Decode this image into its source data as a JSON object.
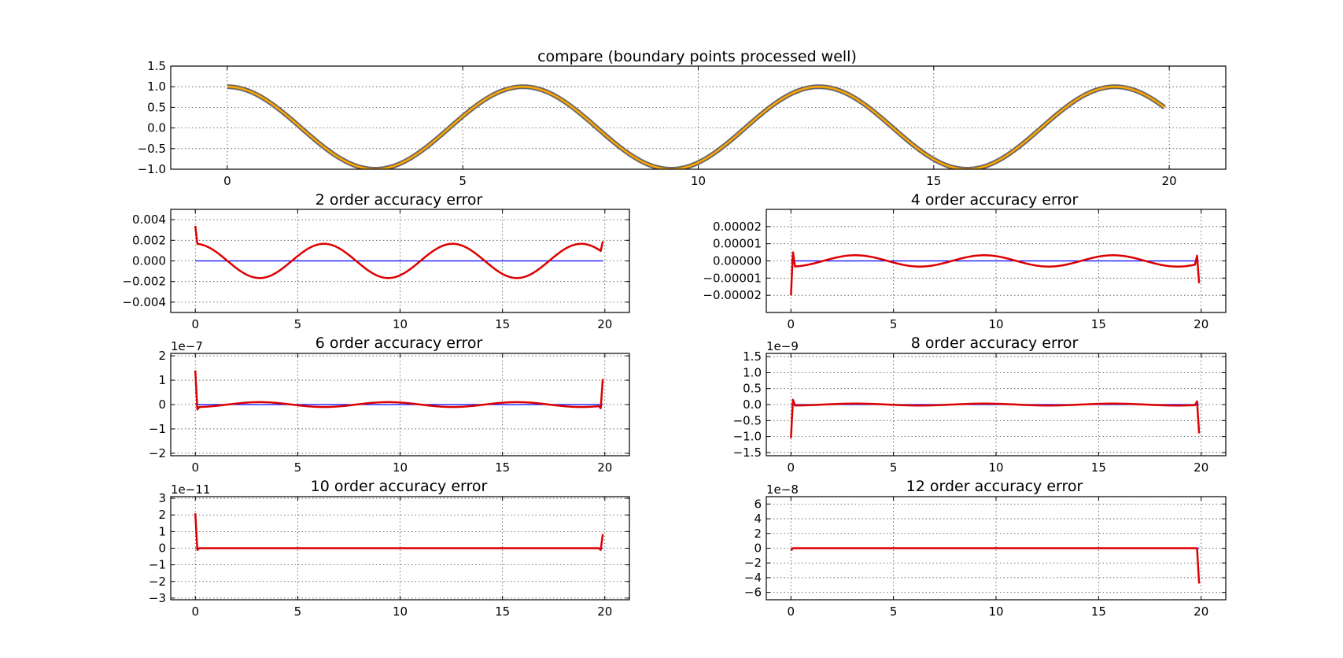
{
  "figure": {
    "background": "#ffffff"
  },
  "chart_data": [
    {
      "id": "compare",
      "type": "line",
      "title": "compare (boundary points processed well)",
      "xlim": [
        -1.2,
        21.2
      ],
      "ylim": [
        -1.0,
        1.5
      ],
      "xticks": [
        0,
        5,
        10,
        15,
        20
      ],
      "yticks": [
        -1.0,
        -0.5,
        0.0,
        0.5,
        1.0,
        1.5
      ],
      "yticklabels": [
        "−1.0",
        "−0.5",
        "0.0",
        "0.5",
        "1.0",
        "1.5"
      ],
      "grid": true,
      "scale_label": "",
      "series": [
        {
          "function": "cos(x)",
          "x_range": [
            0,
            19.9
          ],
          "color": "#666666",
          "line_width": "thick"
        },
        {
          "function": "cos(x)",
          "x_range": [
            0,
            19.9
          ],
          "color": "#ffa500",
          "line_width": "thin"
        }
      ]
    },
    {
      "id": "err2",
      "type": "line",
      "title": "2 order accuracy error",
      "xlim": [
        -1.2,
        21.2
      ],
      "ylim": [
        -0.005,
        0.005
      ],
      "xticks": [
        0,
        5,
        10,
        15,
        20
      ],
      "yticks": [
        -0.004,
        -0.002,
        0.0,
        0.002,
        0.004
      ],
      "yticklabels": [
        "−0.004",
        "−0.002",
        "0.000",
        "0.002",
        "0.004"
      ],
      "grid": true,
      "scale_label": "",
      "series": [
        {
          "function": "zero",
          "x_range": [
            0,
            19.9
          ],
          "color": "#0000ff"
        },
        {
          "function": "amp*cos(x)",
          "amplitude": 0.00166,
          "x_range": [
            0.1,
            19.8
          ],
          "endpoints": [
            [
              0,
              0.0034
            ],
            [
              19.9,
              0.0019
            ]
          ],
          "color": "#dd0000"
        }
      ]
    },
    {
      "id": "err4",
      "type": "line",
      "title": "4 order accuracy error",
      "xlim": [
        -1.2,
        21.2
      ],
      "ylim": [
        -3e-05,
        3e-05
      ],
      "xticks": [
        0,
        5,
        10,
        15,
        20
      ],
      "yticks": [
        -2e-05,
        -1e-05,
        0.0,
        1e-05,
        2e-05
      ],
      "yticklabels": [
        "−0.00002",
        "−0.00001",
        "0.00000",
        "0.00001",
        "0.00002"
      ],
      "grid": true,
      "scale_label": "",
      "series": [
        {
          "function": "zero",
          "x_range": [
            0,
            19.9
          ],
          "color": "#0000ff"
        },
        {
          "function": "amp*cos(x)",
          "amplitude": -3.3e-06,
          "x_range": [
            0.2,
            19.7
          ],
          "endpoints": [
            [
              0,
              -2e-05
            ],
            [
              0.1,
              5e-06
            ],
            [
              19.8,
              3e-06
            ],
            [
              19.9,
              -1.3e-05
            ]
          ],
          "color": "#dd0000"
        }
      ]
    },
    {
      "id": "err6",
      "type": "line",
      "title": "6 order accuracy error",
      "xlim": [
        -1.2,
        21.2
      ],
      "ylim": [
        -2.1,
        2.1
      ],
      "xticks": [
        0,
        5,
        10,
        15,
        20
      ],
      "yticks": [
        -2,
        -1,
        0,
        1,
        2
      ],
      "yticklabels": [
        "−2",
        "−1",
        "0",
        "1",
        "2"
      ],
      "grid": true,
      "scale_label": "1e−7",
      "series": [
        {
          "function": "zero",
          "x_range": [
            0,
            19.9
          ],
          "color": "#0000ff",
          "endpoints": [
            [
              0.1,
              -0.1
            ],
            [
              0.25,
              0.1
            ],
            [
              19.7,
              0.1
            ],
            [
              19.8,
              -0.1
            ]
          ]
        },
        {
          "function": "amp*cos(x)",
          "amplitude": -0.1,
          "x_range": [
            0.2,
            19.7
          ],
          "endpoints": [
            [
              0,
              1.4
            ],
            [
              0.1,
              -0.2
            ],
            [
              19.8,
              -0.15
            ],
            [
              19.9,
              1.05
            ]
          ],
          "color": "#dd0000"
        }
      ]
    },
    {
      "id": "err8",
      "type": "line",
      "title": "8 order accuracy error",
      "xlim": [
        -1.2,
        21.2
      ],
      "ylim": [
        -1.6,
        1.6
      ],
      "xticks": [
        0,
        5,
        10,
        15,
        20
      ],
      "yticks": [
        -1.5,
        -1.0,
        -0.5,
        0.0,
        0.5,
        1.0,
        1.5
      ],
      "yticklabels": [
        "−1.5",
        "−1.0",
        "−0.5",
        "0.0",
        "0.5",
        "1.0",
        "1.5"
      ],
      "grid": true,
      "scale_label": "1e−9",
      "series": [
        {
          "function": "zero",
          "x_range": [
            0,
            19.9
          ],
          "color": "#0000ff",
          "endpoints": [
            [
              0.1,
              0.1
            ],
            [
              0.25,
              -0.05
            ],
            [
              19.7,
              -0.05
            ],
            [
              19.8,
              0.1
            ]
          ]
        },
        {
          "function": "amp*cos(x)",
          "amplitude": -0.03,
          "x_range": [
            0.2,
            19.7
          ],
          "endpoints": [
            [
              0,
              -1.05
            ],
            [
              0.1,
              0.15
            ],
            [
              19.8,
              0.1
            ],
            [
              19.9,
              -0.9
            ]
          ],
          "color": "#dd0000"
        }
      ]
    },
    {
      "id": "err10",
      "type": "line",
      "title": "10 order accuracy error",
      "xlim": [
        -1.2,
        21.2
      ],
      "ylim": [
        -3.1,
        3.1
      ],
      "xticks": [
        0,
        5,
        10,
        15,
        20
      ],
      "yticks": [
        -3,
        -2,
        -1,
        0,
        1,
        2,
        3
      ],
      "yticklabels": [
        "−3",
        "−2",
        "−1",
        "0",
        "1",
        "2",
        "3"
      ],
      "grid": true,
      "scale_label": "1e−11",
      "series": [
        {
          "function": "zero",
          "x_range": [
            0,
            19.9
          ],
          "color": "#0000ff",
          "endpoints": [
            [
              0.1,
              -0.1
            ],
            [
              19.8,
              -0.1
            ]
          ]
        },
        {
          "function": "zero",
          "x_range": [
            0.2,
            19.7
          ],
          "endpoints": [
            [
              0,
              2.1
            ],
            [
              0.1,
              -0.1
            ],
            [
              19.8,
              -0.1
            ],
            [
              19.9,
              0.85
            ]
          ],
          "color": "#dd0000"
        }
      ]
    },
    {
      "id": "err12",
      "type": "line",
      "title": "12 order accuracy error",
      "xlim": [
        -1.2,
        21.2
      ],
      "ylim": [
        -7.0,
        7.0
      ],
      "xticks": [
        0,
        5,
        10,
        15,
        20
      ],
      "yticks": [
        -6,
        -4,
        -2,
        0,
        2,
        4,
        6
      ],
      "yticklabels": [
        "−6",
        "−4",
        "−2",
        "0",
        "2",
        "4",
        "6"
      ],
      "grid": true,
      "scale_label": "1e−8",
      "series": [
        {
          "function": "zero",
          "x_range": [
            0,
            19.9
          ],
          "color": "#0000ff",
          "endpoints": [
            [
              0,
              -0.3
            ]
          ]
        },
        {
          "function": "zero",
          "x_range": [
            0.1,
            19.8
          ],
          "endpoints": [
            [
              0,
              -0.3
            ],
            [
              19.9,
              -4.8
            ]
          ],
          "color": "#dd0000"
        }
      ]
    }
  ]
}
